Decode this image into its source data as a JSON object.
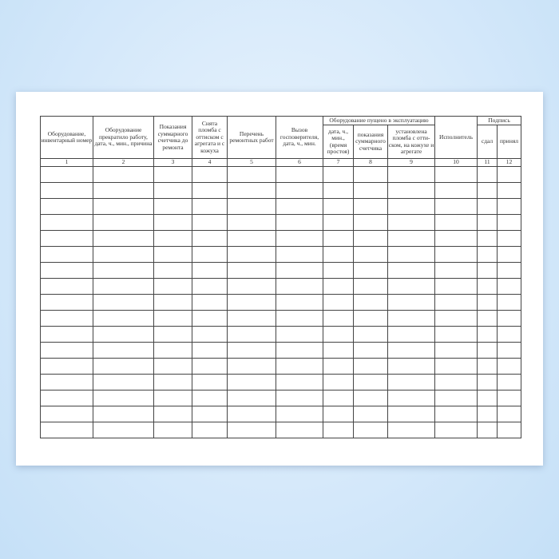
{
  "table": {
    "headers": {
      "c1": "Оборудование, инвентарный номер",
      "c2": "Оборудование прекратило работу, дата, ч., мин., причина",
      "c3": "Показания суммарного счетчика до ремонта",
      "c4": "Снята пломба с оттиском с агрегата и с кожуха",
      "c5": "Перечень ремонтных работ",
      "c6": "Вызов госповерителя, дата, ч., мин.",
      "group_operation": "Оборудование пущено в эксплуатацию",
      "c7": "дата, ч., мин., (время простоя)",
      "c8": "показания суммарного счетчика",
      "c9": "установлена пломба с отти-ском, на кожухе и агрегате",
      "c10": "Исполнитель",
      "group_signature": "Подпись",
      "c11": "сдал",
      "c12": "принял"
    },
    "column_numbers": [
      "1",
      "2",
      "3",
      "4",
      "5",
      "6",
      "7",
      "8",
      "9",
      "10",
      "11",
      "12"
    ],
    "empty_rows": 17
  }
}
